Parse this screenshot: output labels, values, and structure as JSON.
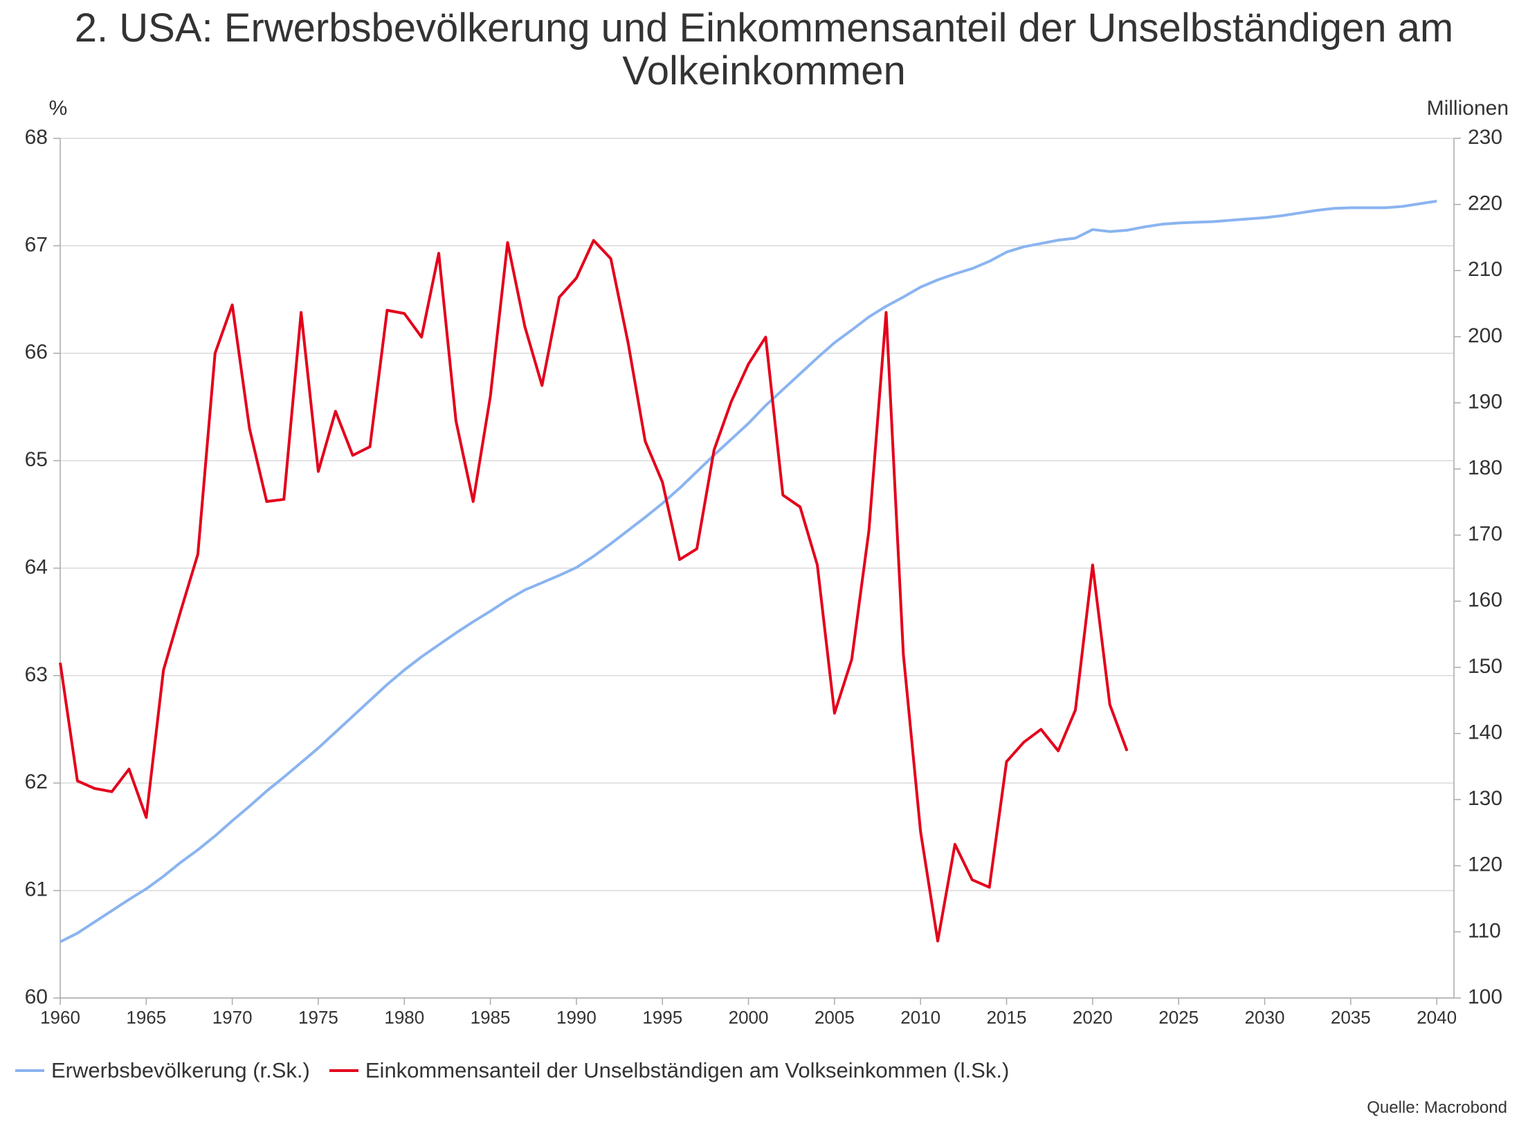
{
  "chart_data": {
    "type": "line",
    "title": "2. USA: Erwerbsbevölkerung und Einkommensanteil der Unselbständigen am Volkeinkommen",
    "ylabel": "%",
    "y2label": "Millionen",
    "source": "Quelle: Macrobond",
    "xlim": [
      1960,
      2041
    ],
    "xticks": [
      1960,
      1965,
      1970,
      1975,
      1980,
      1985,
      1990,
      1995,
      2000,
      2005,
      2010,
      2015,
      2020,
      2025,
      2030,
      2035,
      2040
    ],
    "ylim": [
      60,
      68
    ],
    "yticks": [
      60,
      61,
      62,
      63,
      64,
      65,
      66,
      67,
      68
    ],
    "y2lim": [
      100,
      230
    ],
    "y2ticks": [
      100,
      110,
      120,
      130,
      140,
      150,
      160,
      170,
      180,
      190,
      200,
      210,
      220,
      230
    ],
    "grid": true,
    "legend": "bottom",
    "series": [
      {
        "name": "Erwerbsbevölkerung (r.Sk.)",
        "color": "#8ab4f0",
        "axis": "y2",
        "x": [
          1960,
          1961,
          1962,
          1963,
          1964,
          1965,
          1966,
          1967,
          1968,
          1969,
          1970,
          1971,
          1972,
          1973,
          1974,
          1975,
          1976,
          1977,
          1978,
          1979,
          1980,
          1981,
          1982,
          1983,
          1984,
          1985,
          1986,
          1987,
          1988,
          1989,
          1990,
          1991,
          1992,
          1993,
          1994,
          1995,
          1996,
          1997,
          1998,
          1999,
          2000,
          2001,
          2002,
          2003,
          2004,
          2005,
          2006,
          2007,
          2008,
          2009,
          2010,
          2011,
          2012,
          2013,
          2014,
          2015,
          2016,
          2017,
          2018,
          2019,
          2020,
          2021,
          2022,
          2023,
          2024,
          2025,
          2026,
          2027,
          2028,
          2029,
          2030,
          2031,
          2032,
          2033,
          2034,
          2035,
          2036,
          2037,
          2038,
          2039,
          2040
        ],
        "values": [
          108.5,
          109.8,
          111.5,
          113.2,
          114.9,
          116.5,
          118.4,
          120.5,
          122.4,
          124.5,
          126.8,
          129.0,
          131.3,
          133.4,
          135.6,
          137.8,
          140.2,
          142.6,
          145.0,
          147.4,
          149.6,
          151.6,
          153.4,
          155.2,
          156.9,
          158.5,
          160.2,
          161.7,
          162.8,
          163.9,
          165.1,
          166.8,
          168.7,
          170.7,
          172.7,
          174.8,
          177.1,
          179.6,
          182.1,
          184.5,
          186.9,
          189.6,
          192.0,
          194.4,
          196.8,
          199.1,
          201.0,
          203.0,
          204.6,
          206.0,
          207.5,
          208.6,
          209.5,
          210.3,
          211.4,
          212.8,
          213.6,
          214.1,
          214.6,
          214.9,
          216.2,
          215.9,
          216.1,
          216.6,
          217.0,
          217.2,
          217.3,
          217.4,
          217.6,
          217.8,
          218.0,
          218.3,
          218.7,
          219.1,
          219.4,
          219.5,
          219.5,
          219.5,
          219.7,
          220.1,
          220.5
        ]
      },
      {
        "name": "Einkommensanteil der Unselbständigen am Volkseinkommen (l.Sk.)",
        "color": "#e3001b",
        "x": [
          1960,
          1961,
          1962,
          1963,
          1964,
          1965,
          1966,
          1967,
          1968,
          1969,
          1970,
          1971,
          1972,
          1973,
          1974,
          1975,
          1976,
          1977,
          1978,
          1979,
          1980,
          1981,
          1982,
          1983,
          1984,
          1985,
          1986,
          1987,
          1988,
          1989,
          1990,
          1991,
          1992,
          1993,
          1994,
          1995,
          1996,
          1997,
          1998,
          1999,
          2000,
          2001,
          2002,
          2003,
          2004,
          2005,
          2006,
          2007,
          2008,
          2009,
          2010,
          2011,
          2012,
          2013,
          2014,
          2015,
          2016,
          2017,
          2018,
          2019,
          2020,
          2021,
          2022
        ],
        "values": [
          63.12,
          62.02,
          61.95,
          61.92,
          62.13,
          61.68,
          63.05,
          63.6,
          64.13,
          66.0,
          66.45,
          65.3,
          64.62,
          64.64,
          66.38,
          64.9,
          65.46,
          65.05,
          65.13,
          66.4,
          66.37,
          66.15,
          66.93,
          65.37,
          64.62,
          65.6,
          67.03,
          66.25,
          65.7,
          66.52,
          66.7,
          67.05,
          66.88,
          66.1,
          65.18,
          64.8,
          64.08,
          64.18,
          65.1,
          65.55,
          65.9,
          66.15,
          64.68,
          64.57,
          64.03,
          62.65,
          63.15,
          64.35,
          66.38,
          63.2,
          61.55,
          60.53,
          61.43,
          61.1,
          61.03,
          62.2,
          62.38,
          62.5,
          62.3,
          62.68,
          64.03,
          62.73,
          62.3
        ]
      }
    ]
  }
}
